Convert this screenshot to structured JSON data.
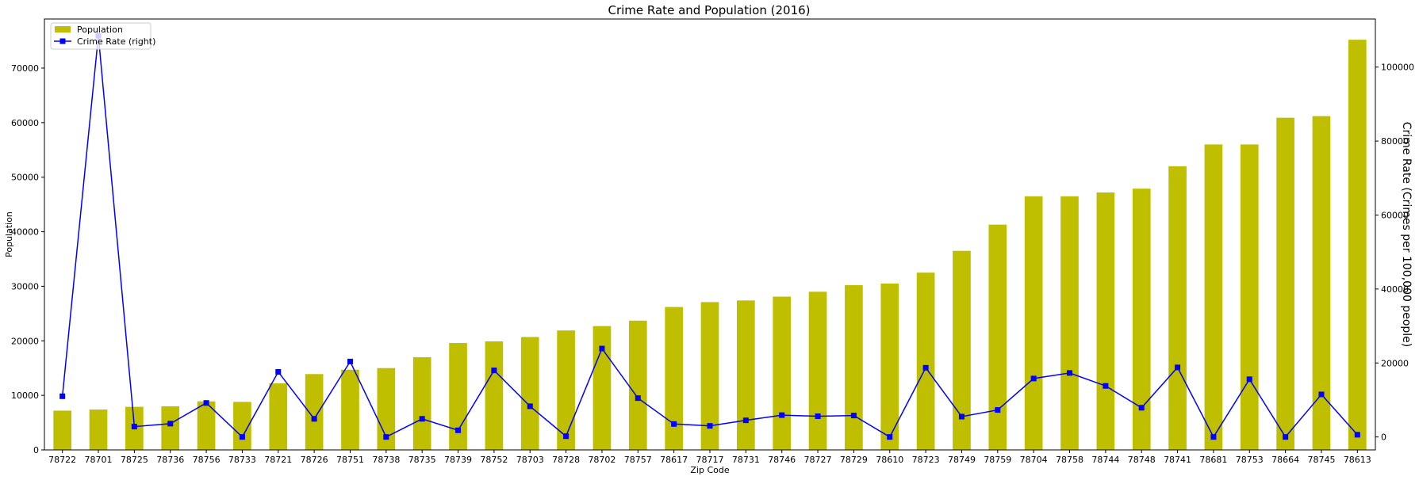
{
  "chart_data": {
    "type": "bar",
    "title": "Crime Rate and Population (2016)",
    "xlabel": "Zip Code",
    "ylabel": "Population",
    "ylabel_right": "Crime Rate (Crimes per 100,000 people)",
    "ylim": [
      0,
      79000
    ],
    "ylim_right": [
      -3500,
      113000
    ],
    "yticks": [
      0,
      10000,
      20000,
      30000,
      40000,
      50000,
      60000,
      70000
    ],
    "yticks_right": [
      0,
      20000,
      40000,
      60000,
      80000,
      100000
    ],
    "legend_position": "top-left",
    "grid": false,
    "categories": [
      "78722",
      "78701",
      "78725",
      "78736",
      "78756",
      "78733",
      "78721",
      "78726",
      "78751",
      "78738",
      "78735",
      "78739",
      "78752",
      "78703",
      "78728",
      "78702",
      "78757",
      "78617",
      "78717",
      "78731",
      "78746",
      "78727",
      "78729",
      "78610",
      "78723",
      "78749",
      "78759",
      "78704",
      "78758",
      "78744",
      "78748",
      "78741",
      "78681",
      "78753",
      "78664",
      "78745",
      "78613"
    ],
    "series": [
      {
        "name": "Population",
        "kind": "bar",
        "axis": "left",
        "color": "#bfbf00",
        "values": [
          7200,
          7400,
          7900,
          8000,
          8900,
          8800,
          12200,
          13900,
          14700,
          15000,
          17000,
          19600,
          19900,
          20700,
          21900,
          22700,
          23700,
          26200,
          27100,
          27400,
          28100,
          29000,
          30200,
          30500,
          32500,
          36500,
          41300,
          46500,
          46500,
          47200,
          47900,
          52000,
          56000,
          56000,
          60900,
          61200,
          75200
        ]
      },
      {
        "name": "Crime Rate (right)",
        "kind": "line",
        "axis": "right",
        "color": "#0000ff",
        "marker": "square",
        "values": [
          11000,
          108500,
          2800,
          3600,
          9200,
          0,
          17600,
          4900,
          20400,
          0,
          4900,
          1800,
          18000,
          8300,
          200,
          23900,
          10500,
          3500,
          3000,
          4500,
          5900,
          5600,
          5800,
          0,
          18700,
          5500,
          7300,
          15800,
          17300,
          13800,
          7900,
          18800,
          0,
          15600,
          0,
          11500,
          600
        ]
      }
    ]
  }
}
